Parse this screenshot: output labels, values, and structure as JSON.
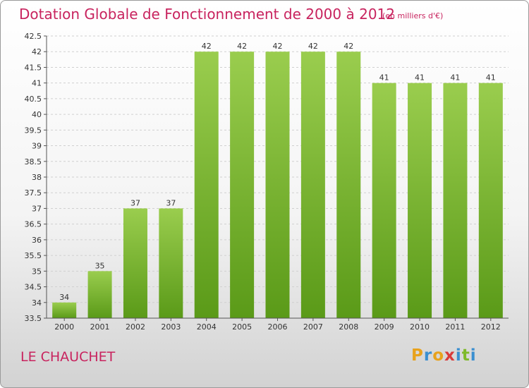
{
  "title": "Dotation Globale de Fonctionnement de 2000 à 2012",
  "unit": "(en milliers d'€)",
  "commune": "LE CHAUCHET",
  "brand": {
    "letters": [
      "P",
      "r",
      "o",
      "x",
      "i",
      "t",
      "i"
    ],
    "colors": [
      "#e8a21c",
      "#3a8fd0",
      "#e8a21c",
      "#d93a3a",
      "#3a8fd0",
      "#7fba2a",
      "#3a8fd0"
    ]
  },
  "colors": {
    "title": "#c8235e",
    "bar_top": "#9acd4e",
    "bar_bottom": "#5a9a18",
    "axis": "#555555",
    "grid": "#d0d0d0"
  },
  "chart_data": {
    "type": "bar",
    "categories": [
      "2000",
      "2001",
      "2002",
      "2003",
      "2004",
      "2005",
      "2006",
      "2007",
      "2008",
      "2009",
      "2010",
      "2011",
      "2012"
    ],
    "values": [
      34,
      35,
      37,
      37,
      42,
      42,
      42,
      42,
      42,
      41,
      41,
      41,
      41
    ],
    "ylim": [
      33.5,
      42.5
    ],
    "yticks": [
      "33.5",
      "34",
      "34.5",
      "35",
      "35.5",
      "36",
      "36.5",
      "37",
      "37.5",
      "38",
      "38.5",
      "39",
      "39.5",
      "40",
      "40.5",
      "41",
      "41.5",
      "42",
      "42.5"
    ],
    "grid": true
  }
}
